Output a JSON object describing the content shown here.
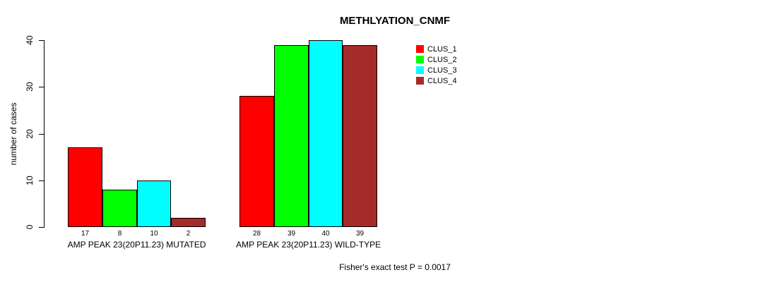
{
  "chart_data": {
    "type": "bar",
    "title": "METHLYATION_CNMF",
    "ylabel": "number of cases",
    "xlabel": "",
    "ylim": [
      0,
      40
    ],
    "yticks": [
      0,
      10,
      20,
      30,
      40
    ],
    "grid": false,
    "legend_position": "top-right",
    "categories": [
      "AMP PEAK 23(20P11.23) MUTATED",
      "AMP PEAK 23(20P11.23) WILD-TYPE"
    ],
    "series": [
      {
        "name": "CLUS_1",
        "color": "#FF0000",
        "values": [
          17,
          28
        ]
      },
      {
        "name": "CLUS_2",
        "color": "#00FF00",
        "values": [
          8,
          39
        ]
      },
      {
        "name": "CLUS_3",
        "color": "#00FFFF",
        "values": [
          10,
          40
        ]
      },
      {
        "name": "CLUS_4",
        "color": "#A52A2A",
        "values": [
          2,
          39
        ]
      }
    ],
    "bar_value_labels": [
      [
        17,
        8,
        10,
        2
      ],
      [
        28,
        39,
        40,
        39
      ]
    ],
    "annotation": "Fisher's exact test P = 0.0017"
  }
}
